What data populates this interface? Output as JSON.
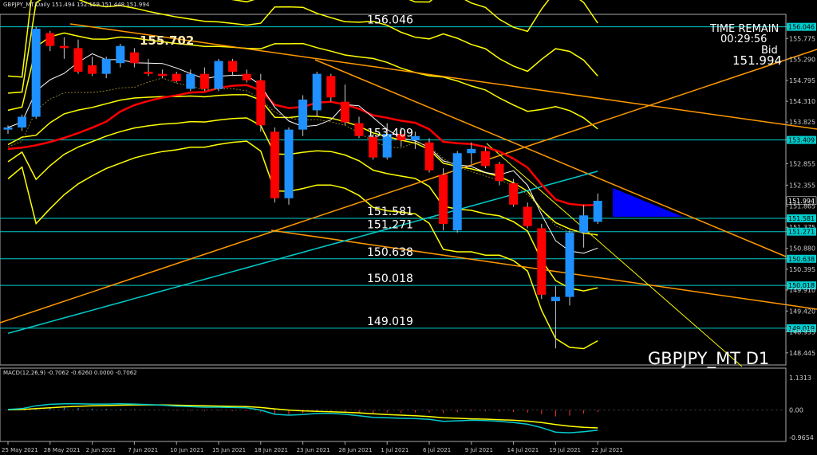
{
  "window": {
    "header": "GBPJPY_MT,Daily  151.494 152.159 151.448 151.994",
    "symbol_label": "GBPJPY_MT D1",
    "time_remain_label": "TIME REMAIN",
    "time_remain": "00:29:56",
    "bid_label": "Bid",
    "bid": "151.994"
  },
  "colors": {
    "background": "#000000",
    "bull": "#1e90ff",
    "bear": "#ff0000",
    "bollinger": "#ffff00",
    "ma_red": "#ff0000",
    "ma_aqua": "#00cccc",
    "ma_white": "#ffffff",
    "trendline": "#ff9900",
    "hline": "#00cccc",
    "macd_signal": "#ffff00",
    "macd_main": "#00cccc"
  },
  "chart_data": {
    "type": "candlestick",
    "title": "GBPJPY_MT D1",
    "ylim": [
      148.2,
      156.3
    ],
    "y_ticks": [
      "156.046",
      "155.775",
      "155.290",
      "154.795",
      "154.310",
      "153.825",
      "153.409",
      "152.855",
      "152.355",
      "151.994",
      "151.865",
      "151.581",
      "151.375",
      "151.271",
      "150.880",
      "150.638",
      "150.395",
      "150.018",
      "149.910",
      "149.420",
      "149.019",
      "148.935",
      "148.445"
    ],
    "x_ticks": [
      {
        "label": "25 May 2021",
        "i": 0
      },
      {
        "label": "28 May 2021",
        "i": 3
      },
      {
        "label": "2 Jun 2021",
        "i": 6
      },
      {
        "label": "7 Jun 2021",
        "i": 9
      },
      {
        "label": "10 Jun 2021",
        "i": 12
      },
      {
        "label": "15 Jun 2021",
        "i": 15
      },
      {
        "label": "18 Jun 2021",
        "i": 18
      },
      {
        "label": "23 Jun 2021",
        "i": 21
      },
      {
        "label": "28 Jun 2021",
        "i": 24
      },
      {
        "label": "1 Jul 2021",
        "i": 27
      },
      {
        "label": "6 Jul 2021",
        "i": 30
      },
      {
        "label": "9 Jul 2021",
        "i": 33
      },
      {
        "label": "14 Jul 2021",
        "i": 36
      },
      {
        "label": "19 Jul 2021",
        "i": 39
      },
      {
        "label": "22 Jul 2021",
        "i": 42
      }
    ],
    "candles": [
      {
        "o": 153.65,
        "h": 153.75,
        "l": 153.55,
        "c": 153.7
      },
      {
        "o": 153.7,
        "h": 154.0,
        "l": 153.62,
        "c": 153.95
      },
      {
        "o": 153.95,
        "h": 156.05,
        "l": 153.9,
        "c": 156.0
      },
      {
        "o": 155.9,
        "h": 155.95,
        "l": 155.48,
        "c": 155.6
      },
      {
        "o": 155.6,
        "h": 155.8,
        "l": 155.3,
        "c": 155.55
      },
      {
        "o": 155.55,
        "h": 155.75,
        "l": 154.95,
        "c": 155.0
      },
      {
        "o": 155.15,
        "h": 155.35,
        "l": 154.9,
        "c": 154.95
      },
      {
        "o": 154.95,
        "h": 155.35,
        "l": 154.85,
        "c": 155.3
      },
      {
        "o": 155.2,
        "h": 155.65,
        "l": 155.1,
        "c": 155.6
      },
      {
        "o": 155.45,
        "h": 155.55,
        "l": 155.1,
        "c": 155.2
      },
      {
        "o": 155.0,
        "h": 155.3,
        "l": 154.9,
        "c": 154.95
      },
      {
        "o": 154.95,
        "h": 155.05,
        "l": 154.85,
        "c": 154.9
      },
      {
        "o": 154.95,
        "h": 155.0,
        "l": 154.75,
        "c": 154.78
      },
      {
        "o": 154.6,
        "h": 155.05,
        "l": 154.55,
        "c": 154.95
      },
      {
        "o": 154.95,
        "h": 155.1,
        "l": 154.55,
        "c": 154.6
      },
      {
        "o": 154.6,
        "h": 155.3,
        "l": 154.55,
        "c": 155.25
      },
      {
        "o": 155.25,
        "h": 155.3,
        "l": 154.9,
        "c": 155.0
      },
      {
        "o": 154.95,
        "h": 155.05,
        "l": 154.75,
        "c": 154.8
      },
      {
        "o": 154.8,
        "h": 154.95,
        "l": 153.6,
        "c": 153.75
      },
      {
        "o": 153.6,
        "h": 153.7,
        "l": 151.95,
        "c": 152.05
      },
      {
        "o": 152.05,
        "h": 153.7,
        "l": 151.9,
        "c": 153.65
      },
      {
        "o": 153.65,
        "h": 154.45,
        "l": 153.5,
        "c": 154.35
      },
      {
        "o": 154.1,
        "h": 155.0,
        "l": 153.95,
        "c": 154.95
      },
      {
        "o": 154.9,
        "h": 154.95,
        "l": 154.3,
        "c": 154.4
      },
      {
        "o": 154.3,
        "h": 154.7,
        "l": 153.75,
        "c": 153.82
      },
      {
        "o": 153.8,
        "h": 153.95,
        "l": 153.45,
        "c": 153.5
      },
      {
        "o": 153.48,
        "h": 153.55,
        "l": 152.95,
        "c": 153.0
      },
      {
        "o": 153.0,
        "h": 153.8,
        "l": 152.95,
        "c": 153.55
      },
      {
        "o": 153.55,
        "h": 153.7,
        "l": 153.25,
        "c": 153.4
      },
      {
        "o": 153.4,
        "h": 153.6,
        "l": 153.2,
        "c": 153.5
      },
      {
        "o": 153.35,
        "h": 153.45,
        "l": 152.65,
        "c": 152.7
      },
      {
        "o": 152.6,
        "h": 152.75,
        "l": 151.3,
        "c": 151.45
      },
      {
        "o": 151.3,
        "h": 153.15,
        "l": 151.25,
        "c": 153.1
      },
      {
        "o": 153.1,
        "h": 153.35,
        "l": 152.85,
        "c": 153.2
      },
      {
        "o": 153.15,
        "h": 153.25,
        "l": 152.75,
        "c": 152.8
      },
      {
        "o": 152.85,
        "h": 152.9,
        "l": 152.35,
        "c": 152.45
      },
      {
        "o": 152.4,
        "h": 152.5,
        "l": 151.85,
        "c": 151.9
      },
      {
        "o": 151.85,
        "h": 151.95,
        "l": 151.35,
        "c": 151.4
      },
      {
        "o": 151.35,
        "h": 151.45,
        "l": 149.7,
        "c": 149.8
      },
      {
        "o": 149.65,
        "h": 150.0,
        "l": 148.55,
        "c": 149.75
      },
      {
        "o": 149.75,
        "h": 151.3,
        "l": 149.55,
        "c": 151.25
      },
      {
        "o": 151.25,
        "h": 151.9,
        "l": 150.9,
        "c": 151.65
      },
      {
        "o": 151.5,
        "h": 152.16,
        "l": 151.45,
        "c": 151.99
      }
    ],
    "hlines": [
      {
        "label": "156.046",
        "y": 156.046
      },
      {
        "label": "153.409",
        "y": 153.409
      },
      {
        "label": "151.581",
        "y": 151.581
      },
      {
        "label": "151.271",
        "y": 151.271
      },
      {
        "label": "150.638",
        "y": 150.638
      },
      {
        "label": "150.018",
        "y": 150.018
      },
      {
        "label": "149.019",
        "y": 149.019
      }
    ],
    "marked_levels": [
      "156.046",
      "153.409",
      "151.581",
      "151.271",
      "150.638",
      "150.018",
      "149.019"
    ],
    "annotations": [
      {
        "text": "155.702",
        "i": 10,
        "y": 155.702
      }
    ],
    "macd": {
      "label": "MACD(12,26,9) -0.7062 -0.6260 0.0000 -0.7062",
      "ylim": [
        -1.05,
        1.25
      ],
      "ticks": [
        "1.1313",
        "0.00",
        "-0.9654"
      ],
      "main": [
        0.02,
        0.05,
        0.15,
        0.2,
        0.22,
        0.22,
        0.21,
        0.21,
        0.22,
        0.21,
        0.19,
        0.17,
        0.14,
        0.12,
        0.1,
        0.1,
        0.09,
        0.08,
        0.0,
        -0.15,
        -0.18,
        -0.16,
        -0.12,
        -0.12,
        -0.15,
        -0.2,
        -0.26,
        -0.27,
        -0.29,
        -0.3,
        -0.33,
        -0.4,
        -0.38,
        -0.36,
        -0.37,
        -0.4,
        -0.44,
        -0.5,
        -0.62,
        -0.78,
        -0.8,
        -0.76,
        -0.71
      ],
      "signal": [
        0.01,
        0.02,
        0.05,
        0.08,
        0.11,
        0.13,
        0.15,
        0.16,
        0.17,
        0.18,
        0.18,
        0.18,
        0.17,
        0.16,
        0.15,
        0.14,
        0.13,
        0.12,
        0.09,
        0.04,
        0.0,
        -0.03,
        -0.05,
        -0.06,
        -0.08,
        -0.1,
        -0.13,
        -0.16,
        -0.18,
        -0.2,
        -0.23,
        -0.27,
        -0.29,
        -0.31,
        -0.32,
        -0.34,
        -0.36,
        -0.39,
        -0.44,
        -0.51,
        -0.57,
        -0.61,
        -0.63
      ]
    }
  }
}
